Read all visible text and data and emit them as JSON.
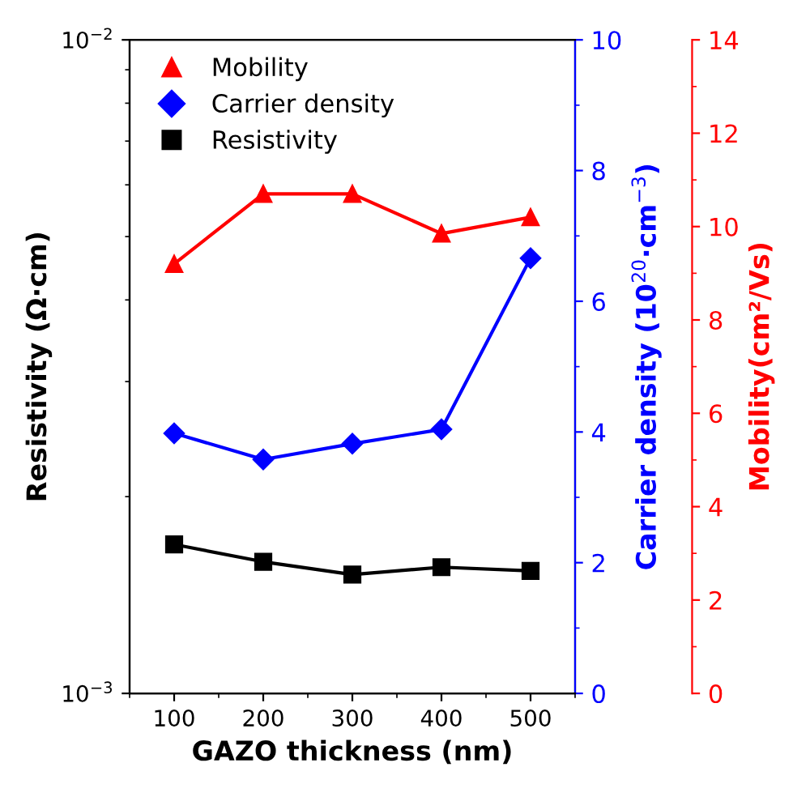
{
  "chart_data": {
    "type": "line",
    "xlabel": "GAZO thickness (nm)",
    "ylabel": "Resistivity (Ω·cm)",
    "y2label": "Carrier density (10$^{20}$·cm$^{−3}$)",
    "y3label": "Mobility(cm²/Vs)",
    "x": [
      100,
      200,
      300,
      400,
      500
    ],
    "xlim": [
      50,
      550
    ],
    "xticks": [
      100,
      200,
      300,
      400,
      500
    ],
    "log": "y",
    "ylim": [
      0.001,
      0.01
    ],
    "yticks": [
      {
        "value": 0.001,
        "label": "10$^{−3}$"
      },
      {
        "value": 0.01,
        "label": "10$^{−2}$"
      }
    ],
    "y2lim": [
      0,
      10
    ],
    "y2ticks": [
      0,
      2,
      4,
      6,
      8,
      10
    ],
    "y3lim": [
      0,
      14
    ],
    "y3ticks": [
      0,
      2,
      4,
      6,
      8,
      10,
      12,
      14
    ],
    "legend": "top left",
    "grid": false,
    "line_style": "solid",
    "series": [
      {
        "name": "Mobility",
        "color": "#ff0000",
        "axis": "y3",
        "marker": "triangle",
        "values": [
          9.2,
          10.7,
          10.7,
          9.85,
          10.2
        ]
      },
      {
        "name": "Carrier density",
        "color": "#0000ff",
        "axis": "y2",
        "marker": "diamond",
        "values": [
          3.98,
          3.58,
          3.82,
          4.04,
          6.66
        ]
      },
      {
        "name": "Resistivity",
        "color": "#000000",
        "axis": "y",
        "marker": "square",
        "values": [
          0.00169,
          0.00159,
          0.00152,
          0.00156,
          0.00154
        ]
      }
    ]
  }
}
